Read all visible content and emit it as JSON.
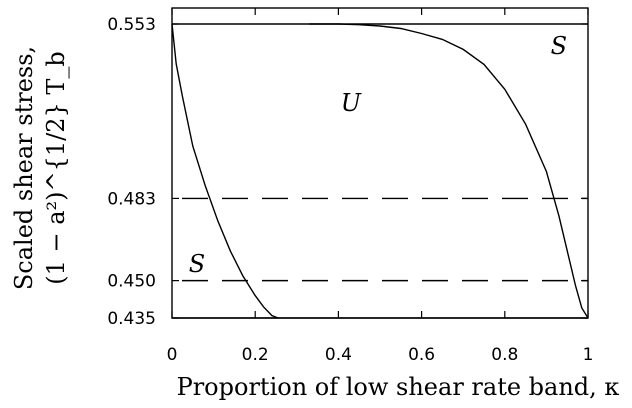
{
  "chart_data": {
    "type": "line",
    "xlabel": "Proportion of low shear rate band, κ",
    "ylabel_line1": "Scaled shear stress,",
    "ylabel_line2": "(1 − a²)^{1/2} T_b",
    "xlim": [
      0,
      1
    ],
    "ylim": [
      0.435,
      0.553
    ],
    "x_ticks": [
      0,
      0.2,
      0.4,
      0.6,
      0.8,
      1
    ],
    "x_tick_labels": [
      "0",
      "0.2",
      "0.4",
      "0.6",
      "0.8",
      "1"
    ],
    "y_ticks": [
      0.435,
      0.45,
      0.483,
      0.553
    ],
    "y_tick_labels": [
      "0.435",
      "0.450",
      "0.483",
      "0.553"
    ],
    "grid": false,
    "reference_lines": [
      {
        "y": 0.553,
        "style": "solid"
      },
      {
        "y": 0.483,
        "style": "dashed"
      },
      {
        "y": 0.45,
        "style": "dashed"
      },
      {
        "y": 0.435,
        "style": "solid"
      }
    ],
    "series": [
      {
        "x": [
          0.0,
          0.01,
          0.025,
          0.05,
          0.08,
          0.11,
          0.14,
          0.17,
          0.2,
          0.22,
          0.24,
          0.255
        ],
        "y": [
          0.553,
          0.537,
          0.524,
          0.504,
          0.488,
          0.474,
          0.462,
          0.452,
          0.444,
          0.4395,
          0.436,
          0.435
        ]
      },
      {
        "x": [
          0.33,
          0.4,
          0.45,
          0.5,
          0.55,
          0.6,
          0.65,
          0.7,
          0.75,
          0.8,
          0.85,
          0.9,
          0.93,
          0.95,
          0.97,
          0.985,
          1.0
        ],
        "y": [
          0.553,
          0.553,
          0.5527,
          0.5522,
          0.5512,
          0.5492,
          0.5468,
          0.5428,
          0.5368,
          0.5268,
          0.5128,
          0.4938,
          0.476,
          0.462,
          0.448,
          0.439,
          0.435
        ]
      }
    ],
    "annotations": [
      {
        "text": "U",
        "x": 0.43,
        "y": 0.518
      },
      {
        "text": "S",
        "x": 0.93,
        "y": 0.541
      },
      {
        "text": "S",
        "x": 0.06,
        "y": 0.4535
      }
    ]
  }
}
